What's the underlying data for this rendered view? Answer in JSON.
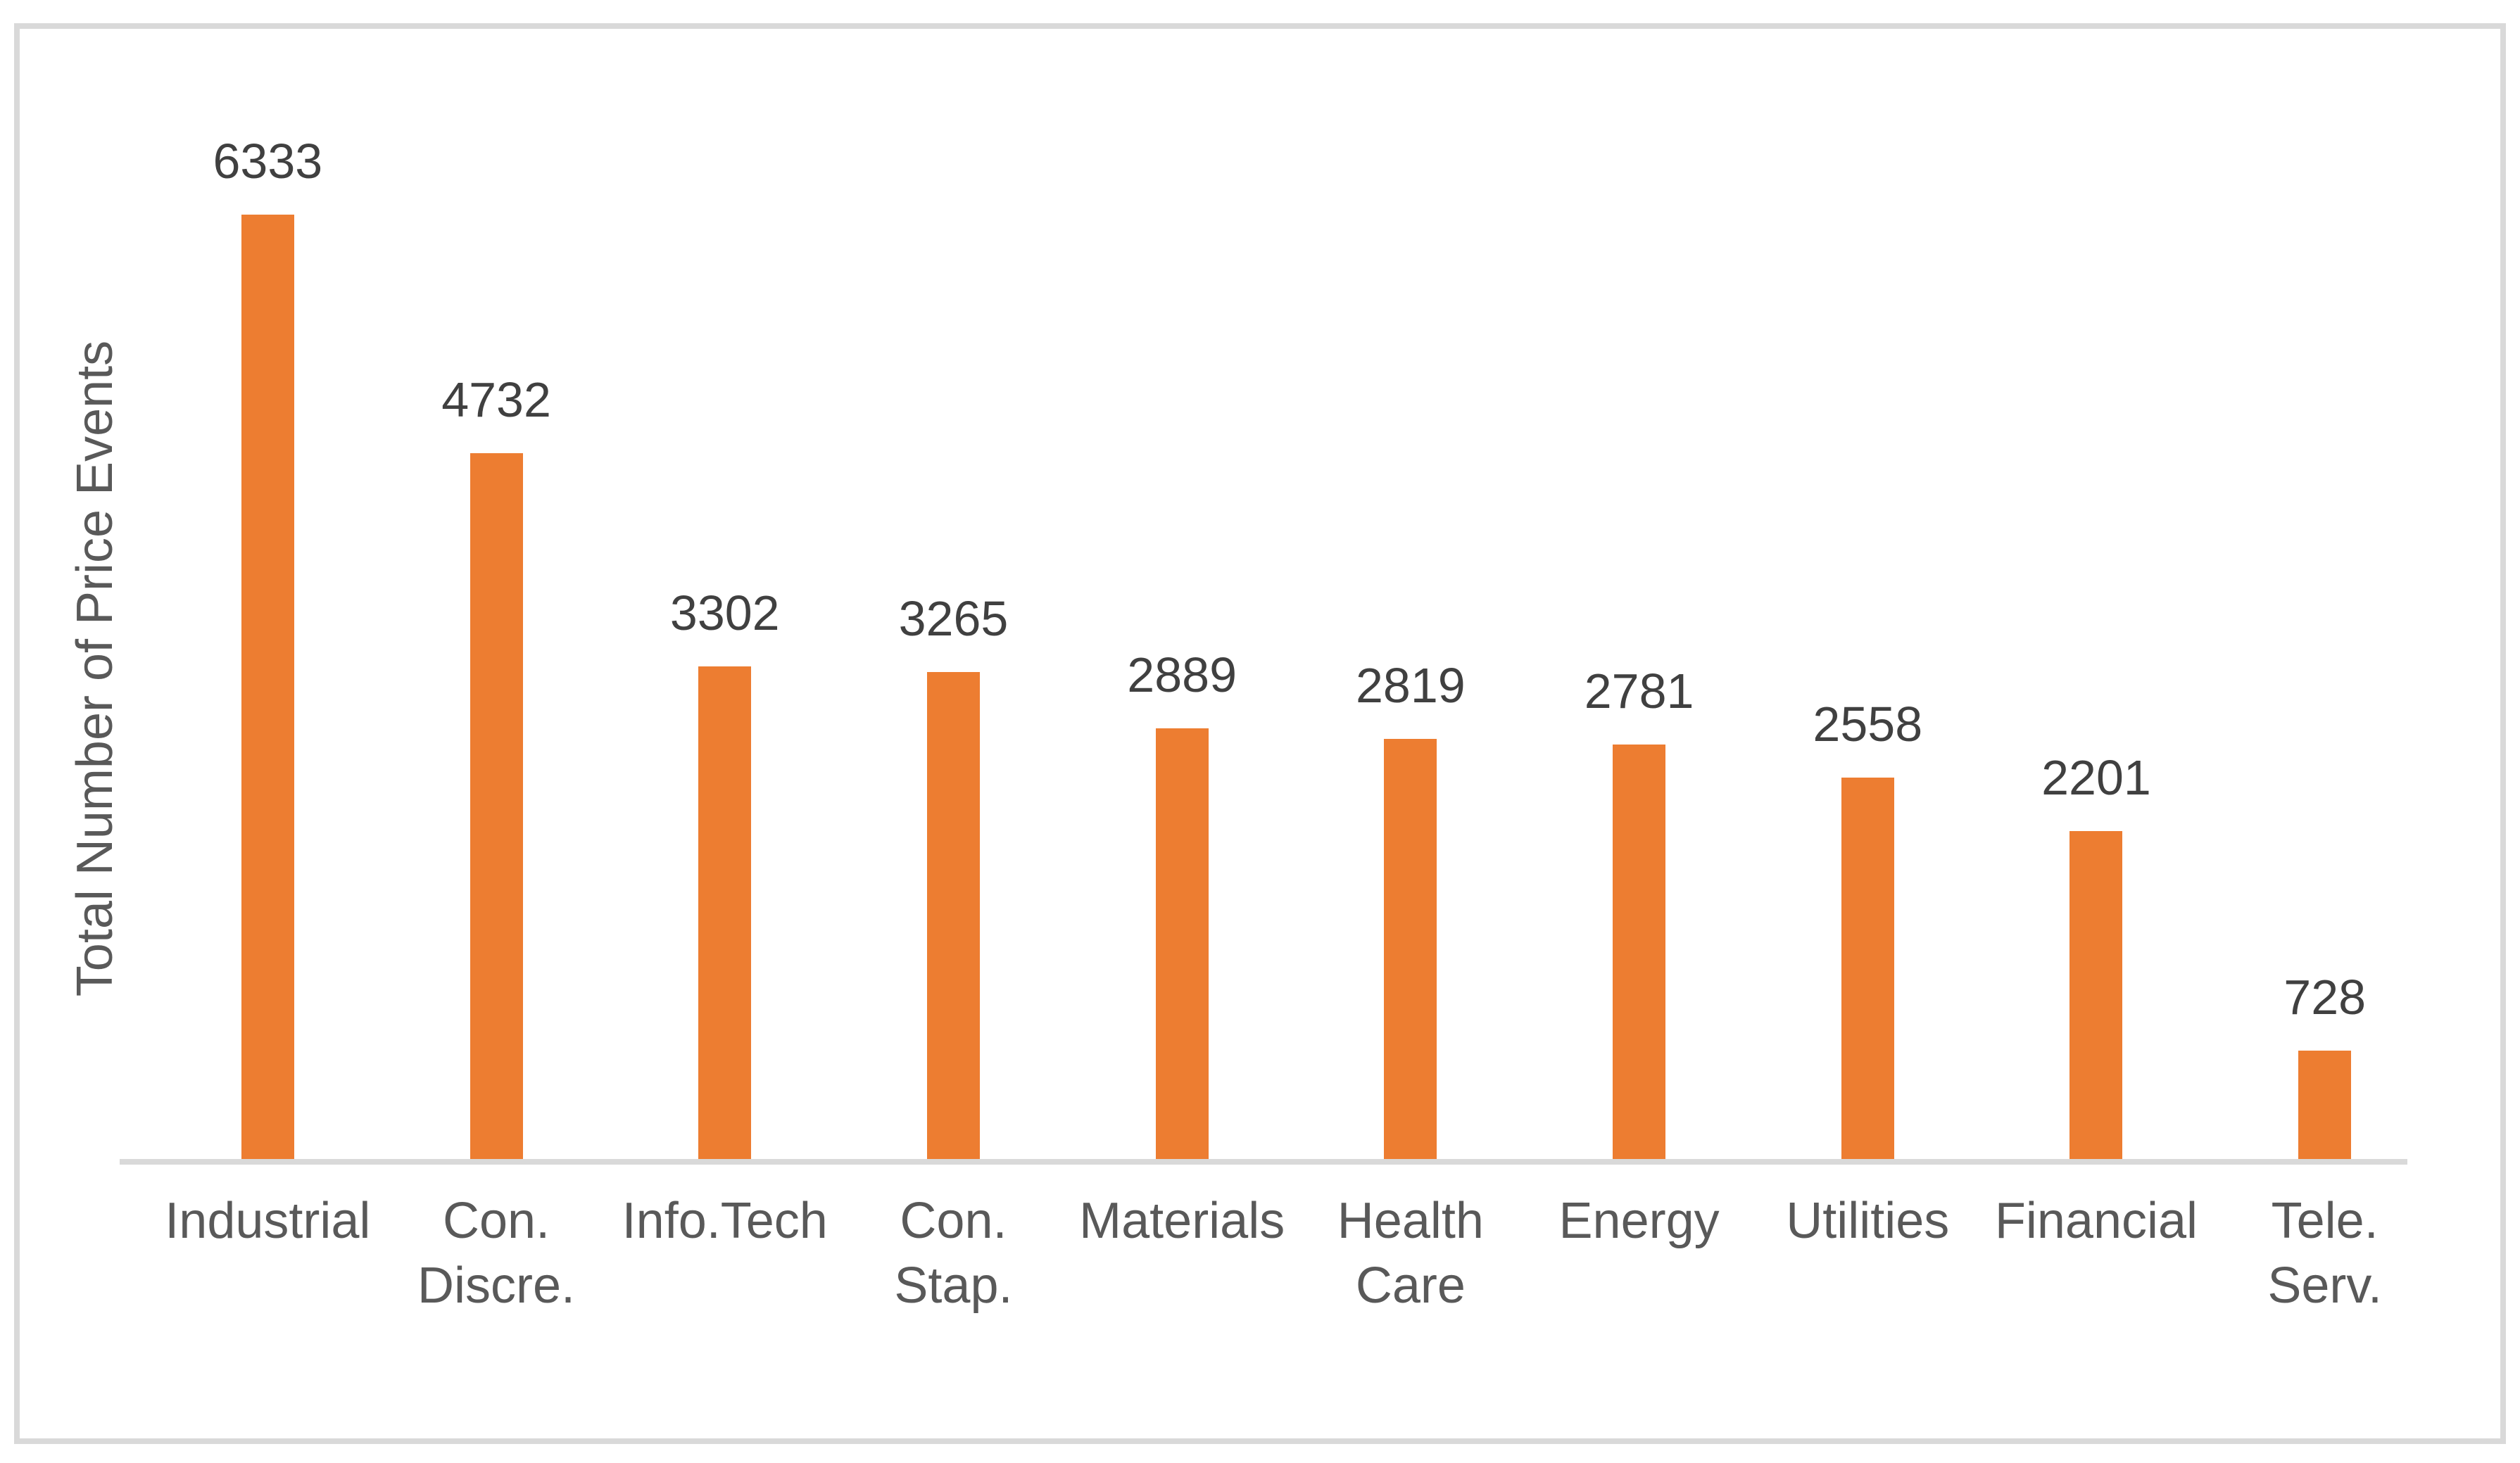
{
  "chart_data": {
    "type": "bar",
    "title": "",
    "xlabel": "",
    "ylabel": "Total Number of Price Events",
    "categories": [
      "Industrial",
      "Con.\nDiscre.",
      "Info.Tech",
      "Con. Stap.",
      "Materials",
      "Health\nCare",
      "Energy",
      "Utilities",
      "Financial",
      "Tele. Serv."
    ],
    "values": [
      6333,
      4732,
      3302,
      3265,
      2889,
      2819,
      2781,
      2558,
      2201,
      728
    ],
    "data_labels": [
      6333,
      4732,
      3302,
      3265,
      2889,
      2819,
      2781,
      2558,
      2201,
      728
    ],
    "ylim": [
      0,
      7000
    ],
    "grid": false,
    "legend": "none",
    "colors": {
      "bar_fill": "#ed7d31",
      "value_label": "#404040",
      "axis_text": "#595959",
      "axis_line": "#d9d9d9",
      "border": "#d9d9d9",
      "background": "#ffffff"
    }
  }
}
